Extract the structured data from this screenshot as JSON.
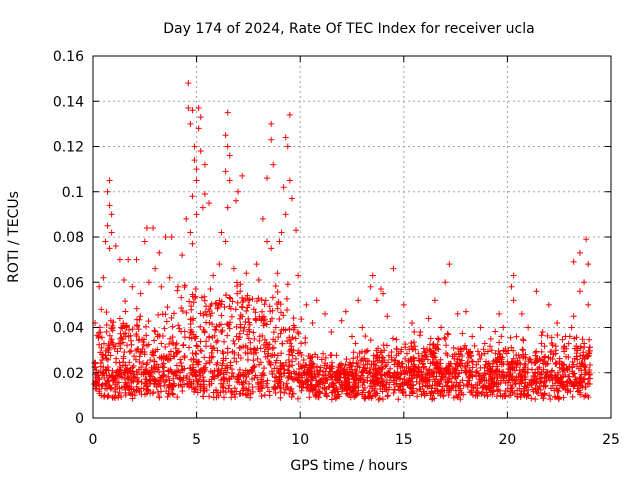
{
  "chart_data": {
    "type": "scatter",
    "title": "Day 174 of 2024, Rate Of TEC Index for receiver ucla",
    "xlabel": "GPS time / hours",
    "ylabel": "ROTI / TECUs",
    "xlim": [
      0,
      25
    ],
    "ylim": [
      0,
      0.16
    ],
    "x_ticks": [
      0,
      5,
      10,
      15,
      20,
      25
    ],
    "x_tick_labels": [
      "0",
      "5",
      "10",
      "15",
      "20",
      "25"
    ],
    "y_ticks": [
      0,
      0.02,
      0.04,
      0.06,
      0.08,
      0.1,
      0.12,
      0.14,
      0.16
    ],
    "y_tick_labels": [
      "0",
      "0.02",
      "0.04",
      "0.06",
      "0.08",
      "0.1",
      "0.12",
      "0.14",
      "0.16"
    ],
    "grid": true,
    "marker": "plus",
    "color": "#ff0000",
    "points": [
      [
        4.6,
        0.148
      ],
      [
        4.6,
        0.137
      ],
      [
        4.8,
        0.136
      ],
      [
        5.1,
        0.137
      ],
      [
        5.2,
        0.133
      ],
      [
        5.1,
        0.128
      ],
      [
        4.7,
        0.13
      ],
      [
        4.9,
        0.12
      ],
      [
        4.9,
        0.114
      ],
      [
        5.0,
        0.11
      ],
      [
        5.2,
        0.118
      ],
      [
        5.4,
        0.112
      ],
      [
        6.5,
        0.135
      ],
      [
        6.4,
        0.125
      ],
      [
        6.5,
        0.12
      ],
      [
        6.6,
        0.116
      ],
      [
        6.4,
        0.109
      ],
      [
        8.6,
        0.13
      ],
      [
        8.6,
        0.123
      ],
      [
        8.7,
        0.112
      ],
      [
        8.4,
        0.106
      ],
      [
        9.5,
        0.134
      ],
      [
        9.3,
        0.124
      ],
      [
        9.4,
        0.12
      ],
      [
        9.5,
        0.105
      ],
      [
        9.2,
        0.102
      ],
      [
        9.6,
        0.097
      ],
      [
        9.3,
        0.09
      ],
      [
        9.1,
        0.082
      ],
      [
        9.8,
        0.083
      ],
      [
        9.0,
        0.078
      ],
      [
        8.4,
        0.078
      ],
      [
        8.6,
        0.075
      ],
      [
        8.2,
        0.088
      ],
      [
        7.2,
        0.107
      ],
      [
        7.0,
        0.1
      ],
      [
        6.9,
        0.096
      ],
      [
        6.6,
        0.105
      ],
      [
        6.5,
        0.093
      ],
      [
        6.2,
        0.082
      ],
      [
        6.4,
        0.078
      ],
      [
        5.6,
        0.095
      ],
      [
        5.4,
        0.099
      ],
      [
        5.3,
        0.093
      ],
      [
        5.0,
        0.105
      ],
      [
        4.8,
        0.098
      ],
      [
        5.0,
        0.09
      ],
      [
        4.7,
        0.082
      ],
      [
        4.5,
        0.088
      ],
      [
        4.8,
        0.077
      ],
      [
        4.3,
        0.072
      ],
      [
        0.8,
        0.105
      ],
      [
        0.7,
        0.1
      ],
      [
        0.8,
        0.094
      ],
      [
        0.9,
        0.09
      ],
      [
        0.7,
        0.085
      ],
      [
        0.9,
        0.082
      ],
      [
        0.6,
        0.078
      ],
      [
        0.8,
        0.075
      ],
      [
        1.1,
        0.076
      ],
      [
        1.3,
        0.07
      ],
      [
        2.6,
        0.084
      ],
      [
        2.9,
        0.084
      ],
      [
        3.5,
        0.08
      ],
      [
        3.8,
        0.08
      ],
      [
        3.2,
        0.073
      ],
      [
        2.5,
        0.078
      ],
      [
        2.1,
        0.07
      ],
      [
        1.7,
        0.07
      ],
      [
        3.0,
        0.066
      ],
      [
        13.5,
        0.063
      ],
      [
        13.4,
        0.058
      ],
      [
        13.9,
        0.057
      ],
      [
        13.7,
        0.052
      ],
      [
        12.8,
        0.052
      ],
      [
        12.2,
        0.047
      ],
      [
        14.5,
        0.066
      ],
      [
        14.0,
        0.055
      ],
      [
        15.0,
        0.05
      ],
      [
        17.2,
        0.068
      ],
      [
        17.0,
        0.06
      ],
      [
        16.5,
        0.052
      ],
      [
        18.0,
        0.047
      ],
      [
        19.6,
        0.046
      ],
      [
        20.3,
        0.063
      ],
      [
        20.2,
        0.058
      ],
      [
        20.3,
        0.052
      ],
      [
        21.4,
        0.056
      ],
      [
        22.0,
        0.05
      ],
      [
        23.5,
        0.073
      ],
      [
        23.2,
        0.069
      ],
      [
        23.8,
        0.079
      ],
      [
        23.9,
        0.068
      ],
      [
        23.7,
        0.06
      ],
      [
        23.9,
        0.05
      ],
      [
        23.5,
        0.056
      ],
      [
        23.2,
        0.045
      ],
      [
        0.1,
        0.042
      ],
      [
        0.3,
        0.058
      ],
      [
        0.5,
        0.062
      ],
      [
        0.4,
        0.048
      ],
      [
        1.5,
        0.061
      ],
      [
        1.9,
        0.058
      ],
      [
        2.3,
        0.055
      ],
      [
        2.7,
        0.06
      ],
      [
        3.3,
        0.058
      ],
      [
        3.7,
        0.062
      ],
      [
        4.1,
        0.058
      ],
      [
        5.8,
        0.063
      ],
      [
        6.1,
        0.068
      ],
      [
        6.8,
        0.066
      ],
      [
        7.4,
        0.064
      ],
      [
        7.9,
        0.068
      ],
      [
        8.0,
        0.061
      ],
      [
        8.9,
        0.064
      ],
      [
        9.9,
        0.063
      ],
      [
        10.3,
        0.05
      ],
      [
        10.6,
        0.042
      ],
      [
        10.8,
        0.052
      ],
      [
        11.2,
        0.046
      ],
      [
        11.5,
        0.038
      ],
      [
        12.0,
        0.043
      ],
      [
        12.5,
        0.036
      ],
      [
        13.0,
        0.04
      ],
      [
        14.2,
        0.045
      ],
      [
        15.4,
        0.042
      ],
      [
        15.8,
        0.038
      ],
      [
        16.2,
        0.044
      ],
      [
        16.8,
        0.04
      ],
      [
        17.6,
        0.046
      ],
      [
        18.3,
        0.036
      ],
      [
        18.7,
        0.04
      ],
      [
        19.2,
        0.035
      ],
      [
        19.8,
        0.04
      ],
      [
        20.7,
        0.046
      ],
      [
        21.0,
        0.04
      ],
      [
        21.7,
        0.038
      ],
      [
        22.4,
        0.042
      ],
      [
        22.8,
        0.036
      ],
      [
        23.1,
        0.04
      ]
    ]
  }
}
